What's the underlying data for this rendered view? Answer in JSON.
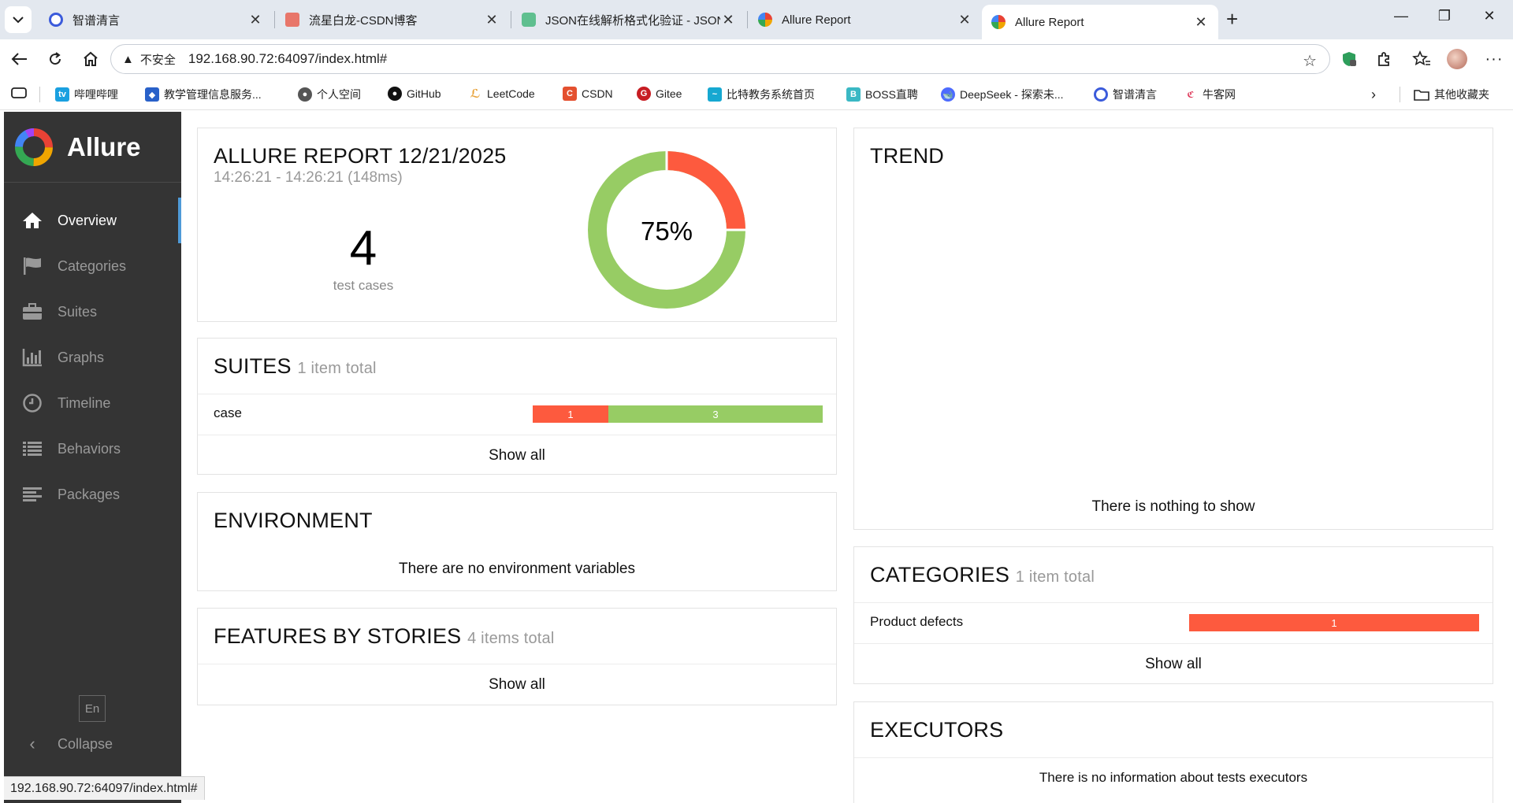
{
  "browser": {
    "tabs": [
      {
        "label": "智谱清言",
        "color": "#3b5bdb"
      },
      {
        "label": "流星白龙-CSDN博客",
        "color": "#e8766a"
      },
      {
        "label": "JSON在线解析格式化验证 - JSON.c",
        "color": "#5fbf8f"
      },
      {
        "label": "Allure Report",
        "color": "#f0a500"
      },
      {
        "label": "Allure Report",
        "color": "#f0a500"
      }
    ],
    "address": {
      "insecure_label": "不安全",
      "url": "192.168.90.72:64097/index.html#"
    },
    "bookmarks": [
      {
        "label": "哔哩哔哩",
        "icon": "bilibili-icon"
      },
      {
        "label": "教学管理信息服务...",
        "icon": "school-icon"
      },
      {
        "label": "个人空间",
        "icon": "globe-icon"
      },
      {
        "label": "GitHub",
        "icon": "github-icon"
      },
      {
        "label": "LeetCode",
        "icon": "leetcode-icon"
      },
      {
        "label": "CSDN",
        "icon": "csdn-icon"
      },
      {
        "label": "Gitee",
        "icon": "gitee-icon"
      },
      {
        "label": "比特教务系统首页",
        "icon": "bit-icon"
      },
      {
        "label": "BOSS直聘",
        "icon": "boss-icon"
      },
      {
        "label": "DeepSeek - 探索未...",
        "icon": "deepseek-icon"
      },
      {
        "label": "智谱清言",
        "icon": "zhipu-icon"
      },
      {
        "label": "牛客网",
        "icon": "nowcoder-icon"
      }
    ],
    "other_bookmarks": "其他收藏夹",
    "status_url": "192.168.90.72:64097/index.html#"
  },
  "sidebar": {
    "brand": "Allure",
    "items": [
      {
        "label": "Overview",
        "icon": "home-icon"
      },
      {
        "label": "Categories",
        "icon": "flag-icon"
      },
      {
        "label": "Suites",
        "icon": "briefcase-icon"
      },
      {
        "label": "Graphs",
        "icon": "bar-chart-icon"
      },
      {
        "label": "Timeline",
        "icon": "clock-icon"
      },
      {
        "label": "Behaviors",
        "icon": "list-icon"
      },
      {
        "label": "Packages",
        "icon": "align-left-icon"
      }
    ],
    "lang": "En",
    "collapse": "Collapse"
  },
  "summary": {
    "title": "ALLURE REPORT 12/21/2025",
    "time": "14:26:21 - 14:26:21 (148ms)",
    "count": "4",
    "count_label": "test cases",
    "percent": "75%",
    "passed": 3,
    "failed": 1,
    "colors": {
      "passed": "#97cc64",
      "failed": "#fd5a3e"
    }
  },
  "suites": {
    "title": "SUITES",
    "subtitle": "1 item total",
    "rows": [
      {
        "name": "case",
        "failed": "1",
        "passed": "3"
      }
    ],
    "show_all": "Show all"
  },
  "environment": {
    "title": "ENVIRONMENT",
    "empty": "There are no environment variables"
  },
  "features": {
    "title": "FEATURES BY STORIES",
    "subtitle": "4 items total",
    "show_all": "Show all"
  },
  "trend": {
    "title": "TREND",
    "empty": "There is nothing to show"
  },
  "categories": {
    "title": "CATEGORIES",
    "subtitle": "1 item total",
    "rows": [
      {
        "name": "Product defects",
        "count": "1"
      }
    ],
    "show_all": "Show all"
  },
  "executors": {
    "title": "EXECUTORS",
    "empty": "There is no information about tests executors"
  }
}
